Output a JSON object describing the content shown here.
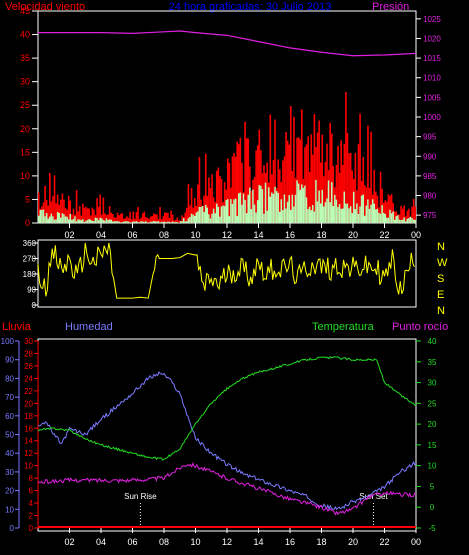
{
  "header": {
    "left_title": "Velocidad viento",
    "center_title": "24 hora graficadas: 30 Julio 2013",
    "right_title": "Presión"
  },
  "colors": {
    "background": "#000000",
    "frame": "#ffffff",
    "wind_axis": "#ff0000",
    "title": "#0000ff",
    "pressure": "#e020e0",
    "gust": "#ff0000",
    "wind_avg": "#ffffff",
    "wind_avg_fill": "#b8ffb8",
    "direction": "#ffff00",
    "rain": "#ff0000",
    "humidity": "#7a7aff",
    "temperature": "#22dd22",
    "dewpoint": "#e020e0",
    "sun_marker": "#ffffff"
  },
  "time_ticks": [
    "02",
    "04",
    "06",
    "08",
    "10",
    "12",
    "14",
    "16",
    "18",
    "20",
    "22",
    "00"
  ],
  "chart_data": [
    {
      "type": "area",
      "title": "24 hora graficadas: 30 Julio 2013",
      "x_range_hours": [
        0,
        24
      ],
      "y_left": {
        "label": "Velocidad viento",
        "ticks": [
          "45",
          "40",
          "35",
          "30",
          "25",
          "20",
          "15",
          "10",
          "5",
          "0"
        ],
        "ylim": [
          0,
          45
        ]
      },
      "y_right": {
        "label": "Presión",
        "ticks": [
          "1025",
          "1020",
          "1015",
          "1010",
          "1005",
          "1000",
          "995",
          "990",
          "985",
          "980",
          "975"
        ],
        "ylim": [
          973,
          1027
        ]
      },
      "series": [
        {
          "name": "Presión",
          "axis": "right",
          "x": [
            0,
            2,
            4,
            6,
            8,
            9,
            10,
            12,
            14,
            16,
            18,
            20,
            22,
            24
          ],
          "y": [
            1021.5,
            1021.5,
            1021.5,
            1021.3,
            1021.7,
            1021.9,
            1021.5,
            1020.8,
            1019.2,
            1017.6,
            1016.5,
            1015.6,
            1015.8,
            1016.2
          ]
        },
        {
          "name": "Racha",
          "axis": "left",
          "x": [
            0,
            1,
            2,
            3,
            4,
            5,
            6,
            7,
            8,
            9,
            10,
            11,
            12,
            13,
            14,
            15,
            16,
            17,
            18,
            19,
            20,
            21,
            22,
            23,
            24
          ],
          "y": [
            7,
            6,
            5,
            3,
            5,
            2,
            2,
            2,
            2,
            1,
            8,
            9,
            11,
            17,
            19,
            20,
            22,
            19,
            21,
            18,
            15,
            12,
            8,
            3,
            3
          ]
        },
        {
          "name": "Promedio",
          "axis": "left",
          "x": [
            0,
            1,
            2,
            3,
            4,
            5,
            6,
            7,
            8,
            9,
            10,
            11,
            12,
            13,
            14,
            15,
            16,
            17,
            18,
            19,
            20,
            21,
            22,
            23,
            24
          ],
          "y": [
            2.5,
            2,
            1.5,
            0.5,
            1,
            0.3,
            0.3,
            0.3,
            0.3,
            0.2,
            2.5,
            3,
            4,
            5,
            6,
            6.5,
            7,
            6.5,
            7,
            6,
            5,
            4,
            3,
            1,
            1
          ]
        }
      ]
    },
    {
      "type": "scatter",
      "x_range_hours": [
        0,
        24
      ],
      "y_left": {
        "ticks": [
          "360",
          "270",
          "180",
          "90",
          "0"
        ],
        "ylim": [
          0,
          360
        ]
      },
      "y_right_labels": [
        "N",
        "W",
        "S",
        "E",
        "N"
      ],
      "series": [
        {
          "name": "Dirección",
          "x": [
            0,
            0.5,
            1,
            1.5,
            2,
            2.5,
            3,
            3.5,
            4,
            4.5,
            5,
            5.5,
            6,
            6.5,
            7,
            7.5,
            8,
            8.5,
            9,
            9.5,
            10,
            10.5,
            11,
            11.5,
            12,
            12.5,
            13,
            13.5,
            14,
            14.5,
            15,
            15.5,
            16,
            16.5,
            17,
            17.5,
            18,
            18.5,
            19,
            19.5,
            20,
            20.5,
            21,
            21.5,
            22,
            22.5,
            23,
            23.5,
            24
          ],
          "y": [
            180,
            120,
            300,
            200,
            260,
            150,
            320,
            240,
            290,
            330,
            40,
            40,
            40,
            45,
            40,
            270,
            270,
            270,
            275,
            300,
            290,
            100,
            150,
            120,
            180,
            200,
            220,
            160,
            250,
            180,
            220,
            200,
            230,
            150,
            210,
            240,
            220,
            210,
            230,
            220,
            210,
            215,
            220,
            210,
            150,
            260,
            80,
            200,
            310
          ]
        }
      ]
    },
    {
      "type": "line",
      "x_range_hours": [
        0,
        24
      ],
      "y_left_outer": {
        "label": "Humedad",
        "ticks": [
          "100",
          "90",
          "80",
          "70",
          "60",
          "50",
          "40",
          "30",
          "20",
          "10",
          "0"
        ],
        "ylim": [
          0,
          100
        ]
      },
      "y_left_inner": {
        "label": "Lluvia",
        "ticks": [
          "30",
          "28",
          "26",
          "24",
          "22",
          "20",
          "18",
          "16",
          "14",
          "12",
          "10",
          "8",
          "6",
          "4",
          "2",
          "0"
        ],
        "ylim": [
          0,
          30
        ]
      },
      "y_right": {
        "label": "Temperatura",
        "ticks": [
          "40",
          "35",
          "30",
          "25",
          "20",
          "15",
          "10",
          "5",
          "0",
          "-5"
        ],
        "ylim": [
          -5,
          40
        ]
      },
      "right_header_labels": [
        "Temperatura",
        "Punto rocío"
      ],
      "annotations": [
        "Sun Rise",
        "Sun Set"
      ],
      "annotation_x": [
        6.5,
        21.3
      ],
      "series": [
        {
          "name": "Humedad",
          "axis": "left_outer",
          "x": [
            0,
            0.5,
            1,
            1.5,
            2,
            3,
            4,
            5,
            6,
            7,
            7.8,
            8.3,
            9,
            9.5,
            10,
            11,
            12,
            13,
            14,
            15,
            16,
            17,
            18,
            19,
            20,
            21,
            22,
            23,
            24
          ],
          "y": [
            55,
            57,
            50,
            45,
            53,
            50,
            58,
            65,
            72,
            80,
            83,
            80,
            72,
            60,
            48,
            40,
            34,
            29,
            26,
            23,
            20,
            17,
            12,
            10,
            14,
            17,
            22,
            30,
            35
          ]
        },
        {
          "name": "Temperatura",
          "axis": "right",
          "x": [
            0,
            1,
            2,
            3,
            4,
            5,
            6,
            7,
            8,
            9,
            10,
            11,
            12,
            13,
            14,
            15,
            16,
            17,
            18,
            19,
            20,
            21,
            21.5,
            22,
            23,
            24
          ],
          "y": [
            18.5,
            19,
            18.5,
            16.5,
            15,
            14,
            13,
            12,
            11.5,
            14,
            20,
            25,
            28.5,
            31,
            32.5,
            33.5,
            34.5,
            35.5,
            36,
            36,
            35.5,
            35.5,
            35.5,
            30,
            27,
            24.5
          ]
        },
        {
          "name": "Punto rocío",
          "axis": "right",
          "x": [
            0,
            2,
            4,
            6,
            8,
            9,
            9.5,
            10,
            11,
            12,
            14,
            16,
            18,
            19,
            20,
            21,
            22,
            23,
            24
          ],
          "y": [
            6,
            6.5,
            6.5,
            6.5,
            7,
            9.5,
            10.5,
            10,
            8.5,
            7,
            4.5,
            2,
            0,
            -1.5,
            -0.5,
            2.5,
            3.5,
            3,
            3
          ]
        },
        {
          "name": "Lluvia",
          "axis": "left_inner",
          "x": [
            0,
            24
          ],
          "y": [
            0,
            0
          ]
        }
      ]
    }
  ]
}
